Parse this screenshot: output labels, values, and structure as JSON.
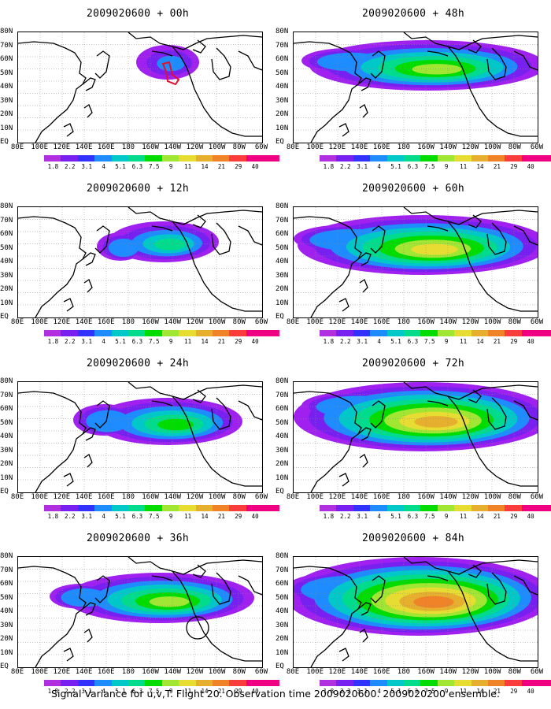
{
  "panels": [
    {
      "title": "2009020600 + 00h",
      "level": 0
    },
    {
      "title": "2009020600 + 12h",
      "level": 1
    },
    {
      "title": "2009020600 + 24h",
      "level": 2
    },
    {
      "title": "2009020600 + 36h",
      "level": 3
    },
    {
      "title": "2009020600 + 48h",
      "level": 4
    },
    {
      "title": "2009020600 + 60h",
      "level": 5
    },
    {
      "title": "2009020600 + 72h",
      "level": 6
    },
    {
      "title": "2009020600 + 84h",
      "level": 7
    }
  ],
  "lat_labels": [
    "80N",
    "70N",
    "60N",
    "50N",
    "40N",
    "30N",
    "20N",
    "10N",
    "EQ"
  ],
  "lon_labels": [
    "80E",
    "100E",
    "120E",
    "140E",
    "160E",
    "180",
    "160W",
    "140W",
    "120W",
    "100W",
    "80W",
    "60W"
  ],
  "colorbar": {
    "labels": [
      "1.8",
      "2.2",
      "3.1",
      "4",
      "5.1",
      "6.3",
      "7.5",
      "9",
      "11",
      "14",
      "21",
      "29",
      "40"
    ],
    "colors": [
      "#a020f0",
      "#7820f0",
      "#3232ff",
      "#1e8cff",
      "#00c8c8",
      "#00dc8c",
      "#00dc00",
      "#a0e632",
      "#e6dc32",
      "#e6af2d",
      "#f08228",
      "#fa3c3c",
      "#f00082"
    ]
  },
  "caption": "Signal Variance for u,v,T. Flight 20. Observation time 2009020600. 2009020200 ensemble."
}
